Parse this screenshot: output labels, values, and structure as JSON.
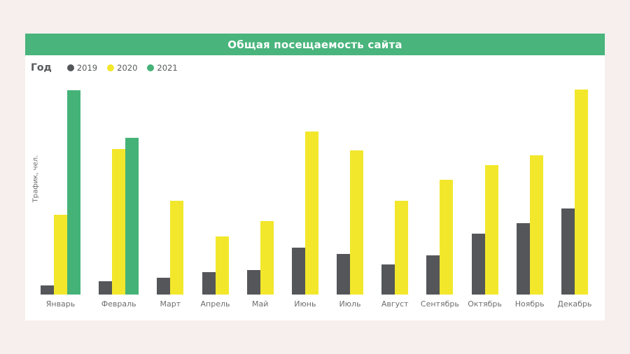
{
  "page": {
    "background_color": "#f6efed",
    "card_background": "#ffffff",
    "header_color": "#49b47c",
    "text_gray": "#6d6e71",
    "legend_text_color": "#58595b"
  },
  "chart_data": {
    "type": "bar",
    "title": "Общая посещаемость сайта",
    "legend_title": "Год",
    "legend_position": "top-left",
    "xlabel": "",
    "ylabel": "Трафик, чел.",
    "grid": false,
    "axis_ticks_shown": false,
    "ylim": [
      0,
      300
    ],
    "categories": [
      "Январь",
      "Февраль",
      "Март",
      "Апрель",
      "Май",
      "Июнь",
      "Июль",
      "Август",
      "Сентябрь",
      "Октябрь",
      "Ноябрь",
      "Декабрь"
    ],
    "series": [
      {
        "name": "2019",
        "color": "#54565a",
        "values": [
          13,
          19,
          24,
          32,
          35,
          67,
          58,
          43,
          56,
          87,
          102,
          123
        ]
      },
      {
        "name": "2020",
        "color": "#f2e72b",
        "values": [
          114,
          208,
          134,
          83,
          105,
          233,
          206,
          134,
          164,
          185,
          199,
          293
        ]
      },
      {
        "name": "2021",
        "color": "#45b278",
        "values": [
          292,
          224,
          null,
          null,
          null,
          null,
          null,
          null,
          null,
          null,
          null,
          null
        ]
      }
    ]
  }
}
